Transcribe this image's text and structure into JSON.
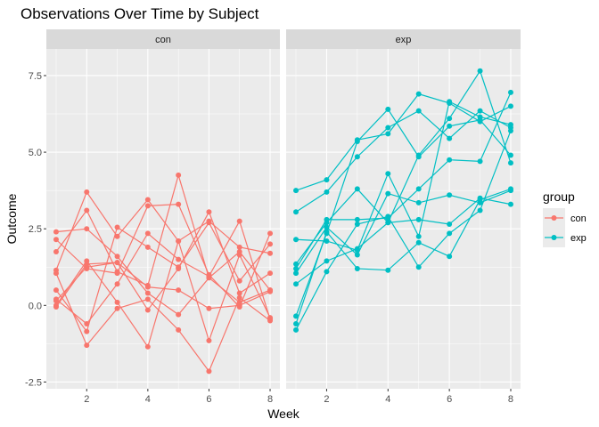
{
  "chart_data": {
    "type": "line",
    "title": "Observations Over Time by Subject",
    "xlabel": "Week",
    "ylabel": "Outcome",
    "xlim": [
      0.68,
      8.32
    ],
    "ylim": [
      -2.72,
      8.37
    ],
    "x_ticks": [
      2,
      4,
      6,
      8
    ],
    "y_ticks": [
      -2.5,
      0.0,
      2.5,
      5.0,
      7.5
    ],
    "y_tick_labels": [
      "-2.5",
      "0.0",
      "2.5",
      "5.0",
      "7.5"
    ],
    "grid": true,
    "legend": {
      "title": "group",
      "position": "right"
    },
    "colors": {
      "con": "#F8766D",
      "exp": "#00BFC4"
    },
    "facets": [
      {
        "label": "con",
        "group": "con",
        "series": [
          {
            "values": [
              2.4,
              2.5,
              1.6,
              0.4,
              -0.3,
              0.9,
              0.1,
              0.5
            ]
          },
          {
            "values": [
              1.15,
              3.7,
              2.25,
              3.45,
              2.1,
              2.75,
              1.9,
              1.7
            ]
          },
          {
            "values": [
              0.5,
              -0.85,
              2.55,
              1.9,
              1.25,
              2.7,
              0.8,
              2.0
            ]
          },
          {
            "values": [
              -0.05,
              1.35,
              1.4,
              0.6,
              0.5,
              -0.1,
              0.0,
              0.45
            ]
          },
          {
            "values": [
              2.15,
              1.2,
              1.05,
              3.25,
              3.3,
              1.0,
              -0.05,
              2.35
            ]
          },
          {
            "values": [
              0.2,
              -0.6,
              0.7,
              2.35,
              1.5,
              0.95,
              2.75,
              -0.45
            ]
          },
          {
            "values": [
              1.75,
              3.1,
              1.1,
              0.65,
              4.25,
              0.9,
              1.75,
              0.5
            ]
          },
          {
            "values": [
              0.15,
              1.25,
              1.4,
              -0.15,
              1.2,
              3.05,
              0.4,
              1.05
            ]
          },
          {
            "values": [
              0.0,
              1.45,
              0.1,
              -1.35,
              2.1,
              -1.15,
              1.65,
              -0.4
            ]
          },
          {
            "values": [
              1.05,
              -1.3,
              -0.1,
              0.2,
              -0.8,
              -2.15,
              0.25,
              -0.5
            ]
          }
        ]
      },
      {
        "label": "exp",
        "group": "exp",
        "series": [
          {
            "values": [
              3.75,
              4.1,
              5.4,
              5.6,
              6.9,
              6.6,
              6.0,
              6.5
            ]
          },
          {
            "values": [
              3.05,
              3.7,
              4.85,
              5.8,
              6.35,
              5.45,
              6.35,
              5.8
            ]
          },
          {
            "values": [
              2.15,
              2.1,
              1.8,
              4.3,
              2.25,
              6.65,
              6.15,
              5.9
            ]
          },
          {
            "values": [
              1.35,
              2.7,
              3.8,
              2.7,
              4.9,
              6.1,
              7.65,
              4.65
            ]
          },
          {
            "values": [
              1.2,
              2.8,
              2.8,
              2.85,
              3.8,
              4.75,
              4.7,
              6.95
            ]
          },
          {
            "values": [
              0.7,
              1.45,
              1.85,
              2.7,
              2.8,
              2.65,
              3.5,
              3.3
            ]
          },
          {
            "values": [
              1.05,
              2.55,
              1.65,
              3.65,
              3.35,
              3.6,
              3.35,
              3.75
            ]
          },
          {
            "values": [
              -0.35,
              2.35,
              5.35,
              6.4,
              4.85,
              5.85,
              6.05,
              4.9
            ]
          },
          {
            "values": [
              -0.6,
              2.4,
              1.2,
              1.15,
              2.05,
              1.6,
              3.45,
              3.8
            ]
          },
          {
            "values": [
              -0.8,
              1.1,
              2.65,
              2.9,
              1.25,
              2.35,
              3.1,
              5.7
            ]
          }
        ]
      }
    ]
  }
}
